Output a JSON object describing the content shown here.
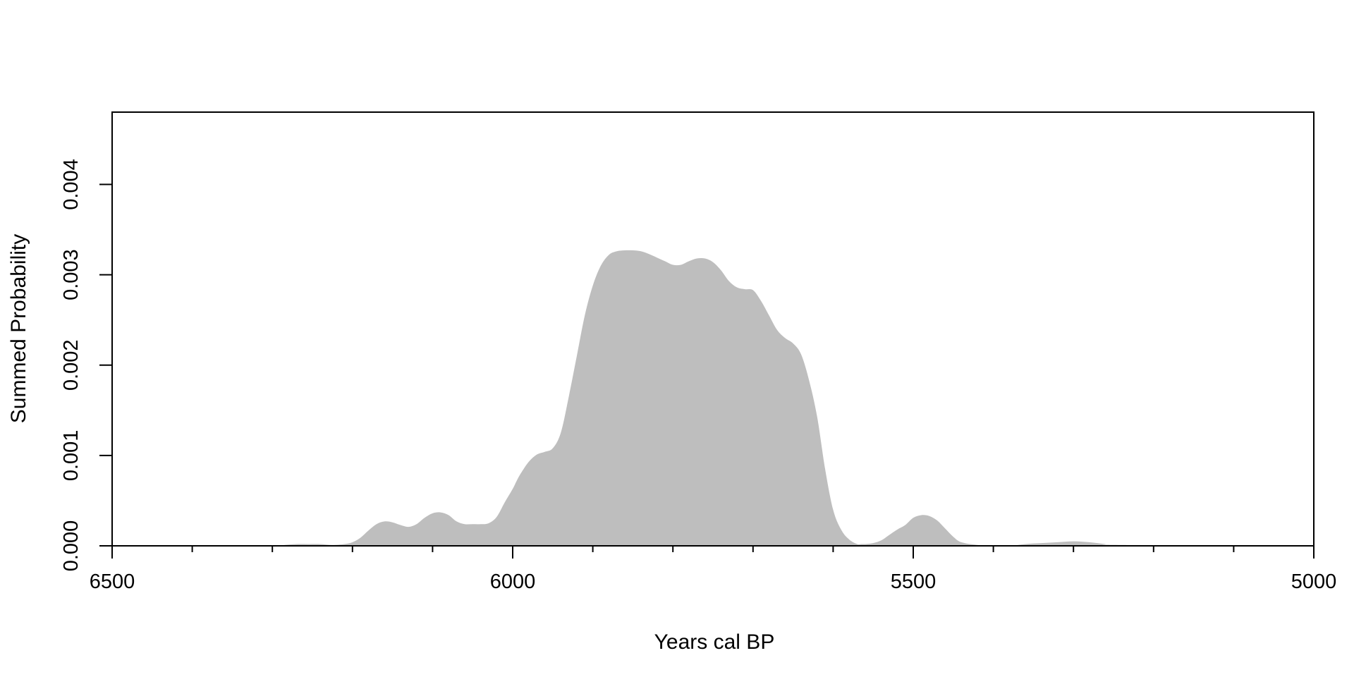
{
  "chart_data": {
    "type": "area",
    "title": "",
    "xlabel": "Years cal BP",
    "ylabel": "Summed Probability",
    "x_reversed": true,
    "xlim": [
      6500,
      5000
    ],
    "ylim": [
      0,
      0.0048
    ],
    "x_major_ticks": [
      6500,
      6000,
      5500,
      5000
    ],
    "x_major_tick_labels": [
      "6500",
      "6000",
      "5500",
      "5000"
    ],
    "x_minor_tick_step": 100,
    "y_ticks": [
      0,
      0.001,
      0.002,
      0.003,
      0.004
    ],
    "y_tick_labels": [
      "0.000",
      "0.001",
      "0.002",
      "0.003",
      "0.004"
    ],
    "grid": false,
    "legend": "none",
    "fill_color": "#bebebe",
    "series": [
      {
        "x": [
          6500,
          6300,
          6285,
          6270,
          6255,
          6240,
          6225,
          6210,
          6200,
          6190,
          6180,
          6170,
          6160,
          6150,
          6140,
          6130,
          6120,
          6110,
          6100,
          6090,
          6080,
          6070,
          6060,
          6050,
          6040,
          6030,
          6020,
          6010,
          6000,
          5995,
          5990,
          5980,
          5970,
          5960,
          5950,
          5940,
          5930,
          5920,
          5910,
          5900,
          5890,
          5880,
          5870,
          5860,
          5850,
          5840,
          5830,
          5820,
          5810,
          5800,
          5790,
          5780,
          5770,
          5760,
          5750,
          5740,
          5730,
          5720,
          5710,
          5700,
          5690,
          5680,
          5670,
          5660,
          5650,
          5640,
          5630,
          5620,
          5610,
          5600,
          5590,
          5580,
          5570,
          5565,
          5560,
          5550,
          5540,
          5530,
          5520,
          5510,
          5500,
          5490,
          5480,
          5470,
          5460,
          5450,
          5440,
          5420,
          5400,
          5380,
          5360,
          5340,
          5320,
          5300,
          5280,
          5260,
          5240,
          5000
        ],
        "y": [
          0,
          0,
          1e-05,
          2e-05,
          2e-05,
          2e-05,
          1e-05,
          2e-05,
          4e-05,
          9e-05,
          0.00017,
          0.00024,
          0.00027,
          0.00026,
          0.00023,
          0.00021,
          0.00024,
          0.00031,
          0.00036,
          0.00037,
          0.00034,
          0.00027,
          0.00024,
          0.00024,
          0.00024,
          0.00025,
          0.00032,
          0.00048,
          0.00063,
          0.00072,
          0.0008,
          0.00093,
          0.00101,
          0.00104,
          0.00108,
          0.00125,
          0.00165,
          0.0021,
          0.00255,
          0.00288,
          0.0031,
          0.00322,
          0.00326,
          0.00327,
          0.00327,
          0.00326,
          0.00323,
          0.00319,
          0.00315,
          0.00311,
          0.00311,
          0.00315,
          0.00318,
          0.00318,
          0.00314,
          0.00305,
          0.00293,
          0.00286,
          0.00284,
          0.00283,
          0.00271,
          0.00255,
          0.00239,
          0.0023,
          0.00224,
          0.00212,
          0.00183,
          0.00143,
          0.00085,
          0.0004,
          0.00018,
          7e-05,
          2e-05,
          2e-05,
          2e-05,
          3e-05,
          6e-05,
          0.00012,
          0.00018,
          0.00023,
          0.00031,
          0.00034,
          0.00033,
          0.00028,
          0.00019,
          0.0001,
          4e-05,
          1e-05,
          0,
          0,
          2e-05,
          3e-05,
          4e-05,
          5e-05,
          4e-05,
          2e-05,
          1e-05,
          0
        ]
      }
    ]
  }
}
